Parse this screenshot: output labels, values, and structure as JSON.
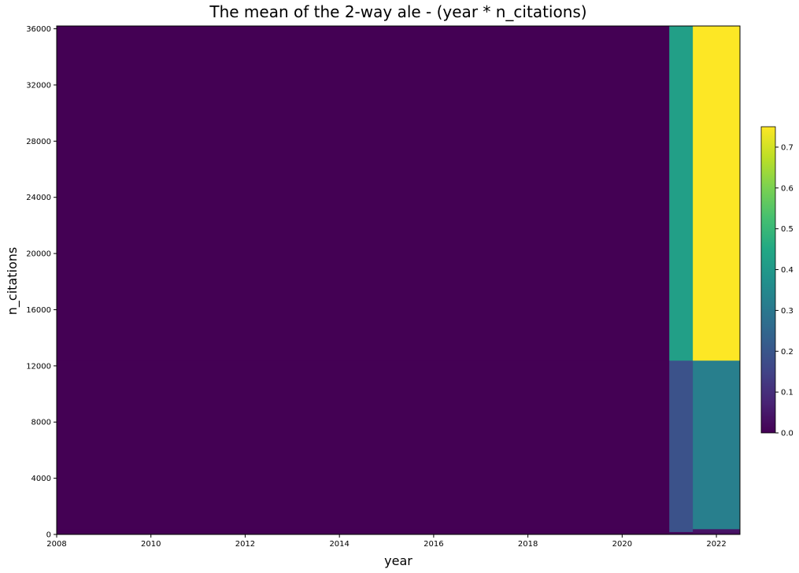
{
  "chart_data": {
    "type": "heatmap",
    "title": "The mean of the 2-way ale - (year * n_citations)",
    "xlabel": "year",
    "ylabel": "n_citations",
    "xlim": [
      2008,
      2022.5
    ],
    "ylim": [
      0,
      36200
    ],
    "x_ticks": [
      2008,
      2010,
      2012,
      2014,
      2016,
      2018,
      2020,
      2022
    ],
    "x_tick_labels": [
      "2008",
      "2010",
      "2012",
      "2014",
      "2016",
      "2018",
      "2020",
      "2022"
    ],
    "y_ticks": [
      0,
      4000,
      8000,
      12000,
      16000,
      20000,
      24000,
      28000,
      32000,
      36000
    ],
    "y_tick_labels": [
      "0",
      "4000",
      "8000",
      "12000",
      "16000",
      "20000",
      "24000",
      "28000",
      "32000",
      "36000"
    ],
    "x_edges": [
      2008,
      2021,
      2021.5,
      2022.5
    ],
    "y_edges": [
      0,
      200,
      400,
      12400,
      36200
    ],
    "values": [
      [
        0.0,
        0.02,
        0.03
      ],
      [
        0.0,
        0.19,
        0.04
      ],
      [
        0.0,
        0.19,
        0.32
      ],
      [
        0.0,
        0.42,
        0.75
      ]
    ],
    "colorbar": {
      "min": 0.0,
      "max": 0.75,
      "ticks": [
        0.0,
        0.1,
        0.2,
        0.3,
        0.4,
        0.5,
        0.6,
        0.7
      ],
      "tick_labels": [
        "0.0",
        "0.1",
        "0.2",
        "0.3",
        "0.4",
        "0.5",
        "0.6",
        "0.7"
      ],
      "colormap": "viridis"
    },
    "grid": false
  }
}
